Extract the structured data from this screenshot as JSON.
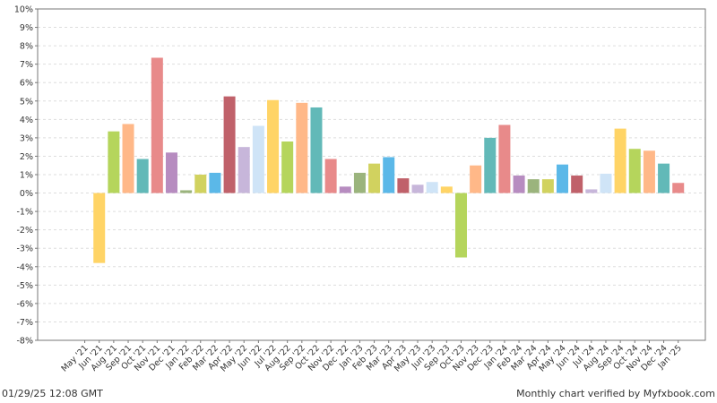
{
  "chart_data": {
    "type": "bar",
    "categories": [
      "May '21",
      "Jun '21",
      "Aug '21",
      "Sep '21",
      "Oct '21",
      "Nov '21",
      "Dec '21",
      "Jan '22",
      "Feb '22",
      "Mar '22",
      "Apr '22",
      "May '22",
      "Jun '22",
      "Jul '22",
      "Aug '22",
      "Sep '22",
      "Oct '22",
      "Nov '22",
      "Dec '22",
      "Jan '23",
      "Feb '23",
      "Mar '23",
      "Apr '23",
      "May '23",
      "Jun '23",
      "Sep '23",
      "Oct '23",
      "Nov '23",
      "Dec '23",
      "Jan '24",
      "Feb '24",
      "Mar '24",
      "Apr '24",
      "May '24",
      "Jun '24",
      "Jul '24",
      "Aug '24",
      "Sep '24",
      "Oct '24",
      "Nov '24",
      "Dec '24",
      "Jan '25"
    ],
    "values": [
      null,
      -3.8,
      3.35,
      3.75,
      1.85,
      7.35,
      2.2,
      0.15,
      1.0,
      1.1,
      5.25,
      2.5,
      3.65,
      5.05,
      2.8,
      4.9,
      4.65,
      1.85,
      0.35,
      1.1,
      1.6,
      1.95,
      0.8,
      0.45,
      0.6,
      0.35,
      -3.5,
      1.5,
      3.0,
      3.7,
      0.95,
      0.75,
      0.75,
      1.55,
      0.95,
      0.2,
      1.05,
      3.5,
      2.4,
      2.3,
      1.6,
      0.55
    ],
    "colors": [
      "#FFD466",
      "#FFD466",
      "#B5D55C",
      "#FFB888",
      "#62B9B8",
      "#E88A8A",
      "#B78CC0",
      "#9BB47D",
      "#D1D25F",
      "#5BB8E8",
      "#C0616A",
      "#C7B6DA",
      "#CFE4F7",
      "#FFD466",
      "#B5D55C",
      "#FFB888",
      "#62B9B8",
      "#E88A8A",
      "#B78CC0",
      "#9BB47D",
      "#D1D25F",
      "#5BB8E8",
      "#C0616A",
      "#C7B6DA",
      "#CFE4F7",
      "#FFD466",
      "#B5D55C",
      "#FFB888",
      "#62B9B8",
      "#E88A8A",
      "#B78CC0",
      "#9BB47D",
      "#D1D25F",
      "#5BB8E8",
      "#C0616A",
      "#C7B6DA",
      "#CFE4F7",
      "#FFD466",
      "#B5D55C",
      "#FFB888",
      "#62B9B8",
      "#E88A8A"
    ],
    "ylim": [
      -8,
      10
    ],
    "yticks": [
      "-8%",
      "-7%",
      "-6%",
      "-5%",
      "-4%",
      "-3%",
      "-2%",
      "-1%",
      "0%",
      "1%",
      "2%",
      "3%",
      "4%",
      "5%",
      "6%",
      "7%",
      "8%",
      "9%",
      "10%"
    ],
    "grid": true,
    "legend": "none"
  },
  "footer": {
    "timestamp": "01/29/25 12:08 GMT",
    "credit": "Monthly chart verified by Myfxbook.com"
  }
}
